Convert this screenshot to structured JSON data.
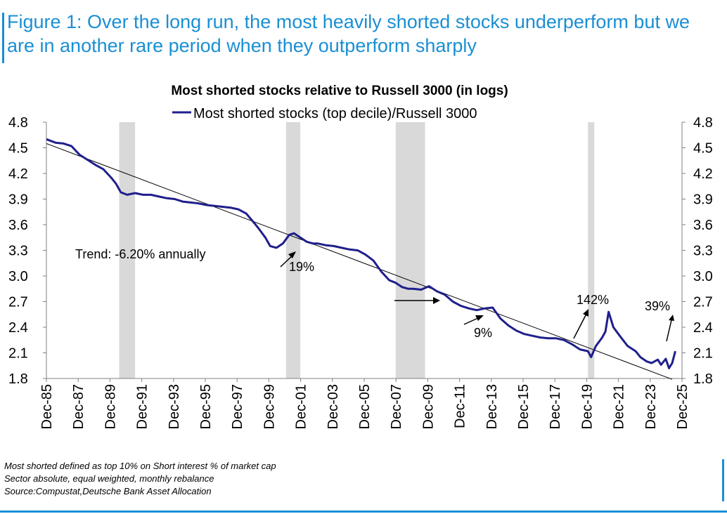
{
  "figure": {
    "title": "Figure 1: Over the long run, the most heavily shorted stocks underperform but we are in another rare period when they outperform sharply",
    "footnotes": [
      "Most shorted defined as top 10% on Short interest % of market cap",
      "Sector absolute, equal weighted, monthly rebalance",
      "Source:Compustat,Deutsche Bank Asset Allocation"
    ],
    "accent_color": "#1a8fd3"
  },
  "chart_data": {
    "type": "line",
    "title": "Most shorted stocks relative to Russell 3000 (in logs)",
    "xlabel": "",
    "ylabel": "",
    "ylim": [
      1.8,
      4.8
    ],
    "xlim": [
      1985.92,
      2025.92
    ],
    "yticks": [
      "4.8",
      "4.5",
      "4.2",
      "3.9",
      "3.6",
      "3.3",
      "3.0",
      "2.7",
      "2.4",
      "2.1",
      "1.8"
    ],
    "xticks": [
      "Dec-85",
      "Dec-87",
      "Dec-89",
      "Dec-91",
      "Dec-93",
      "Dec-95",
      "Dec-97",
      "Dec-99",
      "Dec-01",
      "Dec-03",
      "Dec-05",
      "Dec-07",
      "Dec-09",
      "Dec-11",
      "Dec-13",
      "Dec-15",
      "Dec-17",
      "Dec-19",
      "Dec-21",
      "Dec-23",
      "Dec-25"
    ],
    "series": [
      {
        "name": "Most shorted stocks (top decile)/Russell 3000",
        "color": "#1f1f8c",
        "x": [
          1985.92,
          1986.5,
          1987.0,
          1987.5,
          1988.0,
          1988.5,
          1989.0,
          1989.5,
          1990.0,
          1990.3,
          1990.6,
          1991.0,
          1991.5,
          1992.0,
          1992.5,
          1993.0,
          1993.5,
          1994.0,
          1994.5,
          1995.0,
          1995.5,
          1996.0,
          1996.5,
          1997.0,
          1997.5,
          1998.0,
          1998.5,
          1999.0,
          1999.3,
          1999.7,
          2000.0,
          2000.4,
          2000.8,
          2001.2,
          2001.5,
          2001.9,
          2002.3,
          2002.7,
          2003.0,
          2003.5,
          2004.0,
          2004.5,
          2005.0,
          2005.5,
          2006.0,
          2006.5,
          2007.0,
          2007.5,
          2007.9,
          2008.3,
          2008.7,
          2009.0,
          2009.5,
          2010.0,
          2010.5,
          2011.0,
          2011.5,
          2012.0,
          2012.5,
          2013.0,
          2013.5,
          2014.0,
          2014.5,
          2015.0,
          2015.5,
          2016.0,
          2016.5,
          2017.0,
          2017.5,
          2018.0,
          2018.5,
          2019.0,
          2019.5,
          2020.0,
          2020.2,
          2020.5,
          2020.9,
          2021.1,
          2021.3,
          2021.6,
          2022.0,
          2022.5,
          2023.0,
          2023.3,
          2023.7,
          2024.0,
          2024.4,
          2024.6,
          2024.9,
          2025.1,
          2025.3,
          2025.5
        ],
        "values": [
          4.6,
          4.56,
          4.55,
          4.52,
          4.42,
          4.36,
          4.3,
          4.25,
          4.15,
          4.08,
          3.98,
          3.95,
          3.97,
          3.95,
          3.95,
          3.93,
          3.91,
          3.9,
          3.87,
          3.86,
          3.85,
          3.83,
          3.82,
          3.81,
          3.8,
          3.78,
          3.73,
          3.62,
          3.55,
          3.45,
          3.35,
          3.33,
          3.38,
          3.48,
          3.5,
          3.45,
          3.4,
          3.38,
          3.38,
          3.36,
          3.35,
          3.33,
          3.31,
          3.3,
          3.25,
          3.18,
          3.05,
          2.95,
          2.92,
          2.87,
          2.85,
          2.85,
          2.84,
          2.88,
          2.82,
          2.78,
          2.7,
          2.65,
          2.62,
          2.6,
          2.62,
          2.63,
          2.5,
          2.42,
          2.36,
          2.32,
          2.3,
          2.28,
          2.27,
          2.27,
          2.25,
          2.2,
          2.14,
          2.12,
          2.05,
          2.18,
          2.28,
          2.35,
          2.58,
          2.4,
          2.3,
          2.18,
          2.12,
          2.05,
          2.0,
          1.98,
          2.02,
          1.96,
          2.03,
          1.92,
          1.98,
          2.12
        ]
      }
    ],
    "trend_line": {
      "name": "Trend",
      "x": [
        1985.92,
        2025.3
      ],
      "values": [
        4.55,
        1.79
      ]
    },
    "recessions": [
      [
        1990.5,
        1991.5
      ],
      [
        2001.0,
        2001.9
      ],
      [
        2007.9,
        2009.75
      ],
      [
        2020.0,
        2020.4
      ]
    ],
    "annotations": {
      "trend": "Trend: -6.20% annually",
      "a1": "19%",
      "a2": "9%",
      "a3": "142%",
      "a4": "39%"
    },
    "colors": {
      "recession": "#d9d9d9",
      "trend": "#000000",
      "axis": "#808080"
    }
  }
}
